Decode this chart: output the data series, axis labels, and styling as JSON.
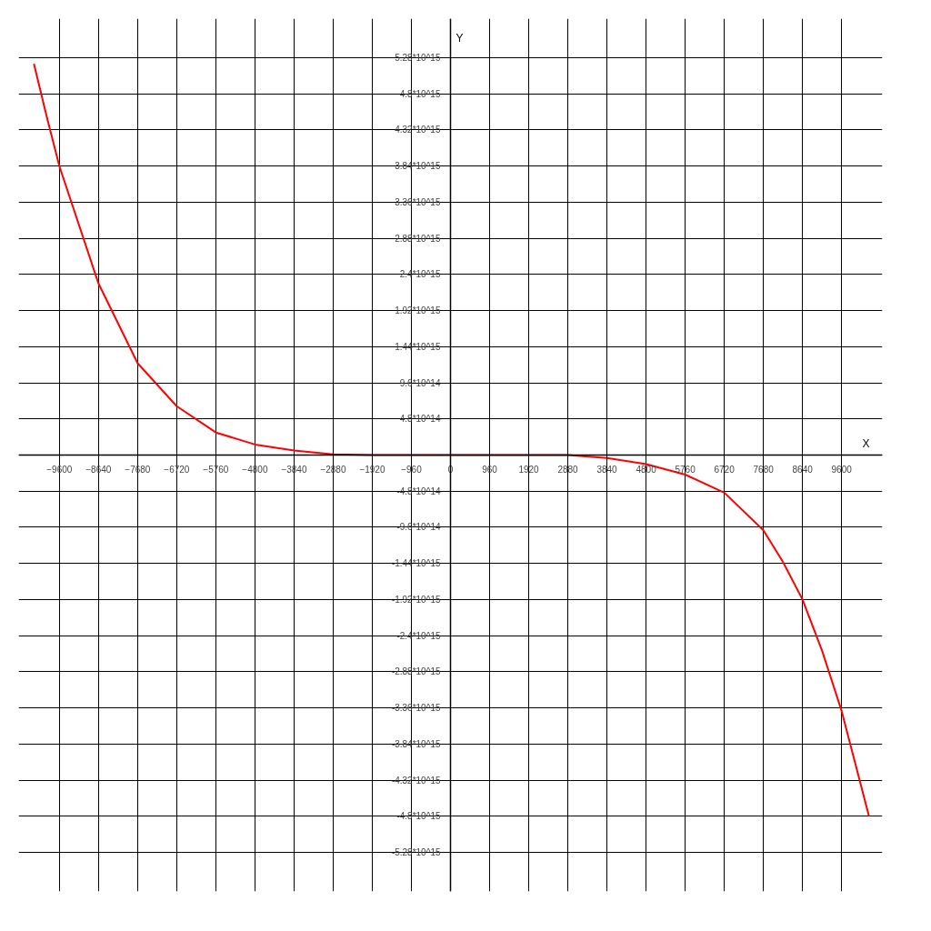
{
  "chart_data": {
    "type": "line",
    "xlabel": "X",
    "ylabel": "Y",
    "x": [
      -10224,
      -9912,
      -9600,
      -8640,
      -7680,
      -6720,
      -5760,
      -4800,
      -3840,
      -2880,
      -1920,
      0,
      1920,
      2880,
      3840,
      4800,
      5760,
      6720,
      7680,
      8160,
      8640,
      9120,
      9600,
      10272
    ],
    "series": [
      {
        "color": "#ff0000",
        "values": [
          5200000000000000.0,
          4500000000000000.0,
          3840000000000000.0,
          2280000000000000.0,
          1220000000000000.0,
          650000000000000.0,
          300000000000000.0,
          140000000000000.0,
          60000000000000.0,
          10000000000000.0,
          0,
          0,
          0,
          0,
          -40000000000000.0,
          -120000000000000.0,
          -260000000000000.0,
          -500000000000000.0,
          -1000000000000000.0,
          -1420000000000000.0,
          -1920000000000000.0,
          -2600000000000000.0,
          -3400000000000000.0,
          -4800000000000000.0
        ]
      }
    ],
    "xlim": [
      -10600,
      10600
    ],
    "ylim": [
      -5800000000000000.0,
      5800000000000000.0
    ],
    "xticks": [
      -9600,
      -8640,
      -7680,
      -6720,
      -5760,
      -4800,
      -3840,
      -2880,
      -1920,
      -960,
      0,
      960,
      1920,
      2880,
      3840,
      4800,
      5760,
      6720,
      7680,
      8640,
      9600
    ],
    "yticks": [
      {
        "value": 5280000000000000.0,
        "label": "5.28*10^15"
      },
      {
        "value": 4800000000000000.0,
        "label": "4.8*10^15"
      },
      {
        "value": 4320000000000000.0,
        "label": "4.32*10^15"
      },
      {
        "value": 3840000000000000.0,
        "label": "3.84*10^15"
      },
      {
        "value": 3360000000000000.0,
        "label": "3.36*10^15"
      },
      {
        "value": 2880000000000000.0,
        "label": "2.88*10^15"
      },
      {
        "value": 2400000000000000.0,
        "label": "2.4*10^15"
      },
      {
        "value": 1920000000000000.0,
        "label": "1.92*10^15"
      },
      {
        "value": 1440000000000000.0,
        "label": "1.44*10^15"
      },
      {
        "value": 960000000000000.0,
        "label": "9.6*10^14"
      },
      {
        "value": 480000000000000.0,
        "label": "4.8*10^14"
      },
      {
        "value": 0,
        "label": null
      },
      {
        "value": -480000000000000.0,
        "label": "-4.8*10^14"
      },
      {
        "value": -960000000000000.0,
        "label": "-9.6*10^14"
      },
      {
        "value": -1440000000000000.0,
        "label": "-1.44*10^15"
      },
      {
        "value": -1920000000000000.0,
        "label": "-1.92*10^15"
      },
      {
        "value": -2400000000000000.0,
        "label": "-2.4*10^15"
      },
      {
        "value": -2880000000000000.0,
        "label": "-2.88*10^15"
      },
      {
        "value": -3360000000000000.0,
        "label": "-3.36*10^15"
      },
      {
        "value": -3840000000000000.0,
        "label": "-3.84*10^15"
      },
      {
        "value": -4320000000000000.0,
        "label": "-4.32*10^15"
      },
      {
        "value": -4800000000000000.0,
        "label": "-4.8*10^15"
      },
      {
        "value": -5280000000000000.0,
        "label": "-5.28*10^15"
      }
    ],
    "grid": true,
    "marker": "none",
    "line_style": "solid"
  }
}
